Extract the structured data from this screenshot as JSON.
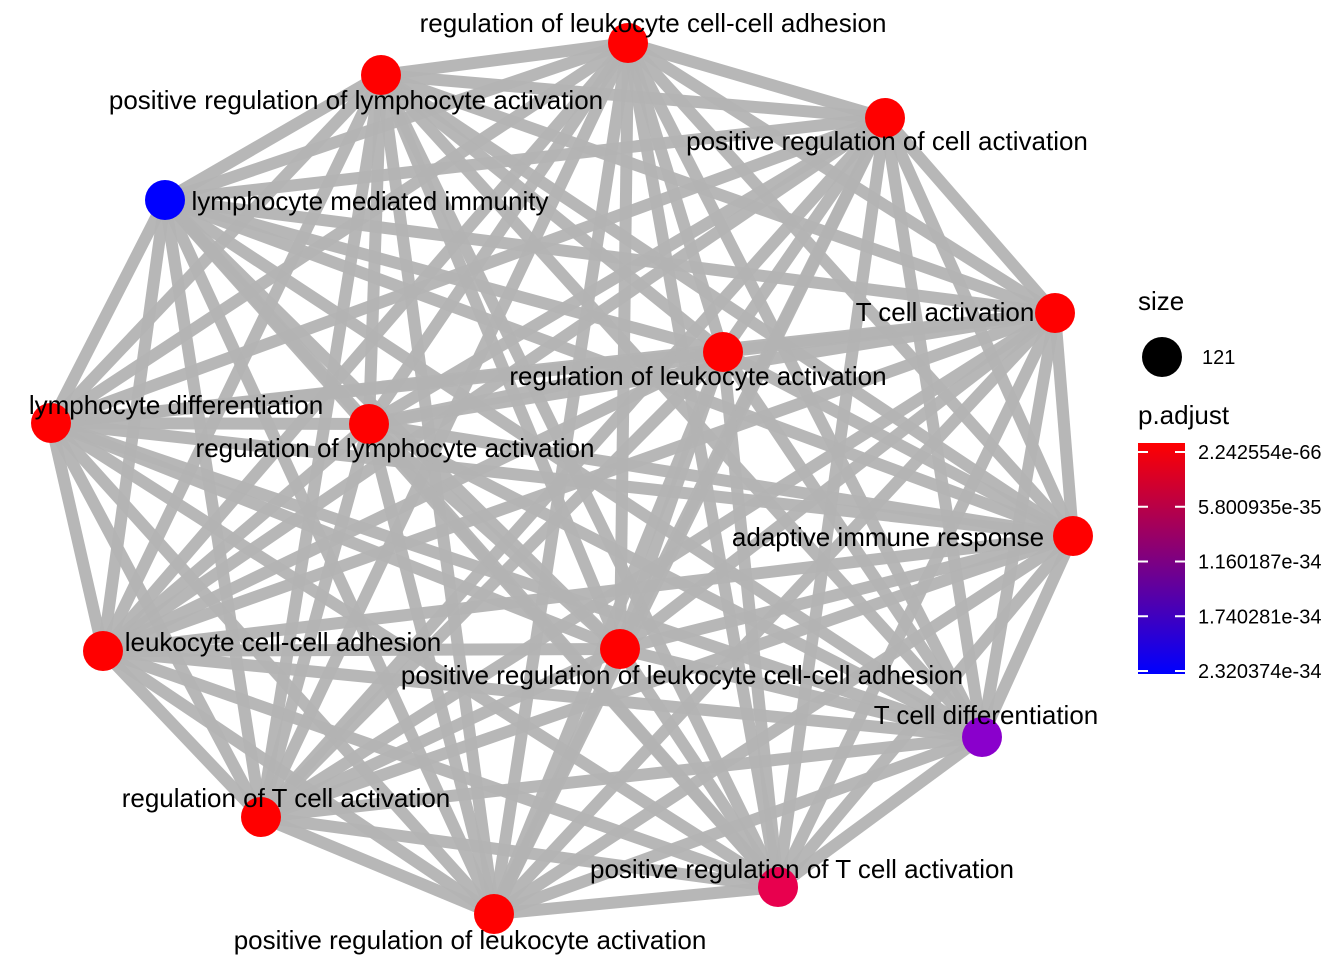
{
  "network": {
    "nodes": [
      {
        "id": "n1",
        "label": "regulation of leukocyte cell-cell adhesion",
        "color": "#ff0000"
      },
      {
        "id": "n2",
        "label": "positive regulation of lymphocyte activation",
        "color": "#ff0000"
      },
      {
        "id": "n3",
        "label": "positive regulation of cell activation",
        "color": "#ff0000"
      },
      {
        "id": "n4",
        "label": "lymphocyte mediated immunity",
        "color": "#0000ff"
      },
      {
        "id": "n5",
        "label": "T cell activation",
        "color": "#ff0000"
      },
      {
        "id": "n6",
        "label": "regulation of leukocyte activation",
        "color": "#ff0000"
      },
      {
        "id": "n7",
        "label": "lymphocyte differentiation",
        "color": "#ff0000"
      },
      {
        "id": "n8",
        "label": "regulation of lymphocyte activation",
        "color": "#ff0000"
      },
      {
        "id": "n9",
        "label": "adaptive immune response",
        "color": "#ff0000"
      },
      {
        "id": "n10",
        "label": "leukocyte cell-cell adhesion",
        "color": "#ff0000"
      },
      {
        "id": "n11",
        "label": "positive regulation of leukocyte cell-cell adhesion",
        "color": "#ff0000"
      },
      {
        "id": "n12",
        "label": "T cell differentiation",
        "color": "#8a00cc"
      },
      {
        "id": "n13",
        "label": "regulation of T cell activation",
        "color": "#ff0000"
      },
      {
        "id": "n14",
        "label": "positive regulation of T cell activation",
        "color": "#e8004e"
      },
      {
        "id": "n15",
        "label": "positive regulation of leukocyte activation",
        "color": "#ff0000"
      }
    ],
    "edge_color": "#b3b3b3",
    "edges": "all-pairs"
  },
  "legend": {
    "size": {
      "title": "size",
      "value_label": "121"
    },
    "padjust": {
      "title": "p.adjust",
      "ticks": [
        "2.242554e-66",
        "5.800935e-35",
        "1.160187e-34",
        "1.740281e-34",
        "2.320374e-34"
      ],
      "gradient_colors": [
        "#ff0000",
        "#0000ff"
      ]
    }
  }
}
